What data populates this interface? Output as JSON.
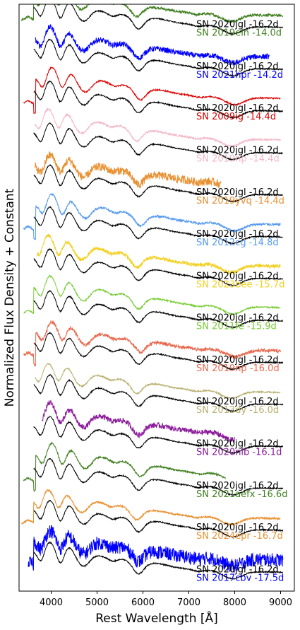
{
  "chart_data": {
    "type": "line",
    "title": "",
    "xlabel": "Rest Wavelength [Å]",
    "ylabel": "Normalized Flux Density + Constant",
    "xlim": [
      3300,
      9300
    ],
    "xticks": [
      4000,
      5000,
      6000,
      7000,
      8000,
      9000
    ],
    "xtick_labels": [
      "4000",
      "5000",
      "6000",
      "7000",
      "8000",
      "9000"
    ],
    "yticks_shown": false,
    "grid": false,
    "reference": "SN 2020jgl -16.2d",
    "reference_color": "#000000",
    "pairs": [
      {
        "reference_label": "SN 2020jgl -16.2d",
        "comparison_label": "SN 2019ein -14.0d",
        "color": "#3f7f1f",
        "x_start": 3350,
        "x_end": 9050,
        "noise": 0.06
      },
      {
        "reference_label": "SN 2020jgl -16.2d",
        "comparison_label": "SN 2021hpr -14.2d",
        "color": "#0000ff",
        "x_start": 3650,
        "x_end": 8750,
        "noise": 0.12
      },
      {
        "reference_label": "SN 2020jgl -16.2d",
        "comparison_label": "SN 2009ig -14.4d",
        "color": "#dd0000",
        "x_start": 3400,
        "x_end": 9000,
        "noise": 0.03
      },
      {
        "reference_label": "SN 2020jgl -16.2d",
        "comparison_label": "SN 2019np -14.4d",
        "color": "#f2b8c6",
        "x_start": 3650,
        "x_end": 9000,
        "noise": 0.04
      },
      {
        "reference_label": "SN 2020jgl -16.2d",
        "comparison_label": "SN 2019yvq -14.4d",
        "color": "#e89030",
        "x_start": 3650,
        "x_end": 7700,
        "noise": 0.18
      },
      {
        "reference_label": "SN 2020jgl -16.2d",
        "comparison_label": "SN 2012cg -14.8d",
        "color": "#5599ee",
        "x_start": 3400,
        "x_end": 9000,
        "noise": 0.05
      },
      {
        "reference_label": "SN 2020jgl -16.2d",
        "comparison_label": "SN 2023bee -15.7d",
        "color": "#f2d020",
        "x_start": 3700,
        "x_end": 9000,
        "noise": 0.08
      },
      {
        "reference_label": "SN 2020jgl -16.2d",
        "comparison_label": "SN 2011fe -15.9d",
        "color": "#77cc33",
        "x_start": 3400,
        "x_end": 9000,
        "noise": 0.03
      },
      {
        "reference_label": "SN 2020jgl -16.2d",
        "comparison_label": "SN 2019np -16.0d",
        "color": "#e86a50",
        "x_start": 3400,
        "x_end": 9000,
        "noise": 0.08
      },
      {
        "reference_label": "SN 2020jgl -16.2d",
        "comparison_label": "SN 2013dy -16.0d",
        "color": "#b8b070",
        "x_start": 3650,
        "x_end": 9000,
        "noise": 0.03
      },
      {
        "reference_label": "SN 2020jgl -16.2d",
        "comparison_label": "SN 2020nlb -16.1d",
        "color": "#8a1a9a",
        "x_start": 3800,
        "x_end": 8000,
        "noise": 0.12
      },
      {
        "reference_label": "SN 2020jgl -16.2d",
        "comparison_label": "SN 2021aefx -16.6d",
        "color": "#3f7f1f",
        "x_start": 3400,
        "x_end": 7800,
        "noise": 0.04
      },
      {
        "reference_label": "SN 2020jgl -16.2d",
        "comparison_label": "SN 2024epr -16.7d",
        "color": "#e89030",
        "x_start": 3350,
        "x_end": 9000,
        "noise": 0.04
      },
      {
        "reference_label": "SN 2020jgl -16.2d",
        "comparison_label": "SN 2017cbv -17.5d",
        "color": "#0000ff",
        "x_start": 3500,
        "x_end": 9050,
        "noise": 0.3
      }
    ]
  }
}
